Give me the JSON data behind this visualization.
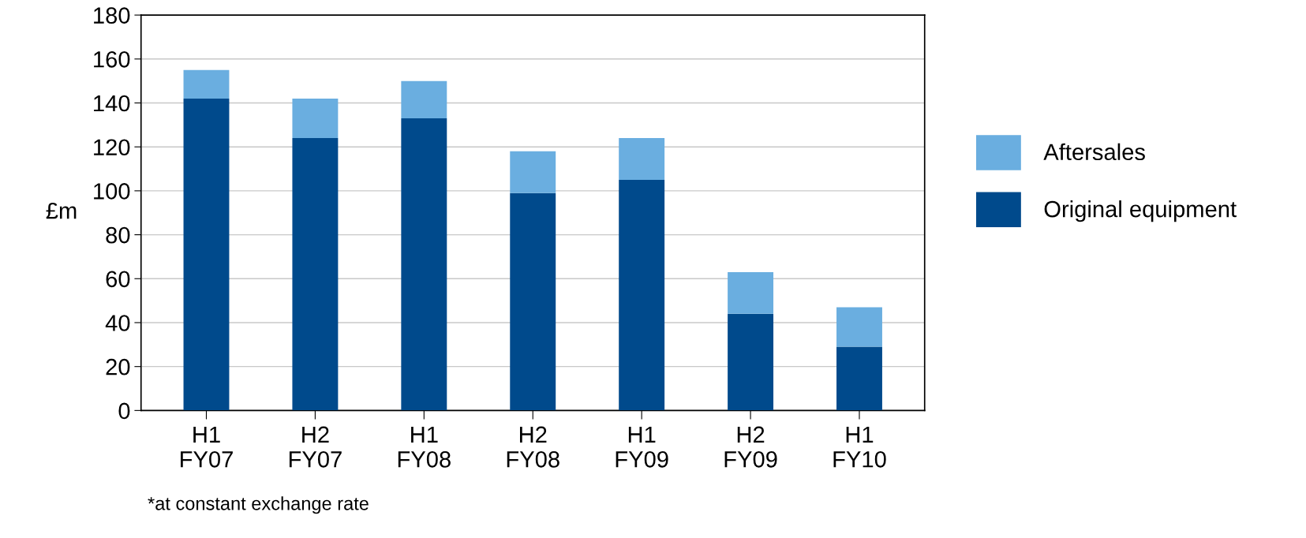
{
  "chart_data": {
    "type": "bar",
    "stacked": true,
    "ylabel": "£m",
    "categories": [
      "H1\nFY07",
      "H2\nFY07",
      "H1\nFY08",
      "H2\nFY08",
      "H1\nFY09",
      "H2\nFY09",
      "H1\nFY10"
    ],
    "series": [
      {
        "name": "Original equipment",
        "color": "#004a8c",
        "values": [
          142,
          124,
          133,
          99,
          105,
          44,
          29
        ]
      },
      {
        "name": "Aftersales",
        "color": "#6aaee0",
        "values": [
          13,
          18,
          17,
          19,
          19,
          19,
          18
        ]
      }
    ],
    "ylim": [
      0,
      180
    ],
    "yticks": [
      0,
      20,
      40,
      60,
      80,
      100,
      120,
      140,
      160,
      180
    ],
    "grid": "y",
    "legend": "right",
    "annotations": [
      "*at constant exchange rate"
    ]
  }
}
